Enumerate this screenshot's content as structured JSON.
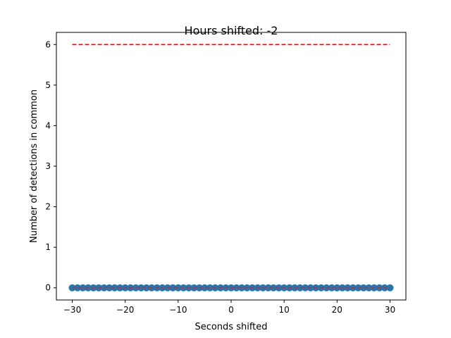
{
  "chart_data": {
    "type": "scatter",
    "title": "Hours shifted: -2",
    "xlabel": "Seconds shifted",
    "ylabel": "Number of detections in common",
    "xlim": [
      -33,
      33
    ],
    "ylim": [
      -0.3,
      6.3
    ],
    "x_ticks": [
      -30,
      -20,
      -10,
      0,
      10,
      20,
      30
    ],
    "x_tick_labels": [
      "−30",
      "−20",
      "−10",
      "0",
      "10",
      "20",
      "30"
    ],
    "y_ticks": [
      0,
      1,
      2,
      3,
      4,
      5,
      6
    ],
    "y_tick_labels": [
      "0",
      "1",
      "2",
      "3",
      "4",
      "5",
      "6"
    ],
    "grid": false,
    "legend": "none",
    "series": [
      {
        "kind": "scatter",
        "color": "#1f77b4",
        "x": [
          -30,
          -29,
          -28,
          -27,
          -26,
          -25,
          -24,
          -23,
          -22,
          -21,
          -20,
          -19,
          -18,
          -17,
          -16,
          -15,
          -14,
          -13,
          -12,
          -11,
          -10,
          -9,
          -8,
          -7,
          -6,
          -5,
          -4,
          -3,
          -2,
          -1,
          0,
          1,
          2,
          3,
          4,
          5,
          6,
          7,
          8,
          9,
          10,
          11,
          12,
          13,
          14,
          15,
          16,
          17,
          18,
          19,
          20,
          21,
          22,
          23,
          24,
          25,
          26,
          27,
          28,
          29,
          30
        ],
        "y": [
          0,
          0,
          0,
          0,
          0,
          0,
          0,
          0,
          0,
          0,
          0,
          0,
          0,
          0,
          0,
          0,
          0,
          0,
          0,
          0,
          0,
          0,
          0,
          0,
          0,
          0,
          0,
          0,
          0,
          0,
          0,
          0,
          0,
          0,
          0,
          0,
          0,
          0,
          0,
          0,
          0,
          0,
          0,
          0,
          0,
          0,
          0,
          0,
          0,
          0,
          0,
          0,
          0,
          0,
          0,
          0,
          0,
          0,
          0,
          0,
          0
        ]
      },
      {
        "kind": "line",
        "style": "dashed",
        "color": "#d62728",
        "x": [
          -30,
          30
        ],
        "y": [
          0,
          0
        ]
      },
      {
        "kind": "line",
        "style": "dashed",
        "color": "#ff0000",
        "x": [
          -30,
          30
        ],
        "y": [
          6,
          6
        ]
      }
    ]
  }
}
